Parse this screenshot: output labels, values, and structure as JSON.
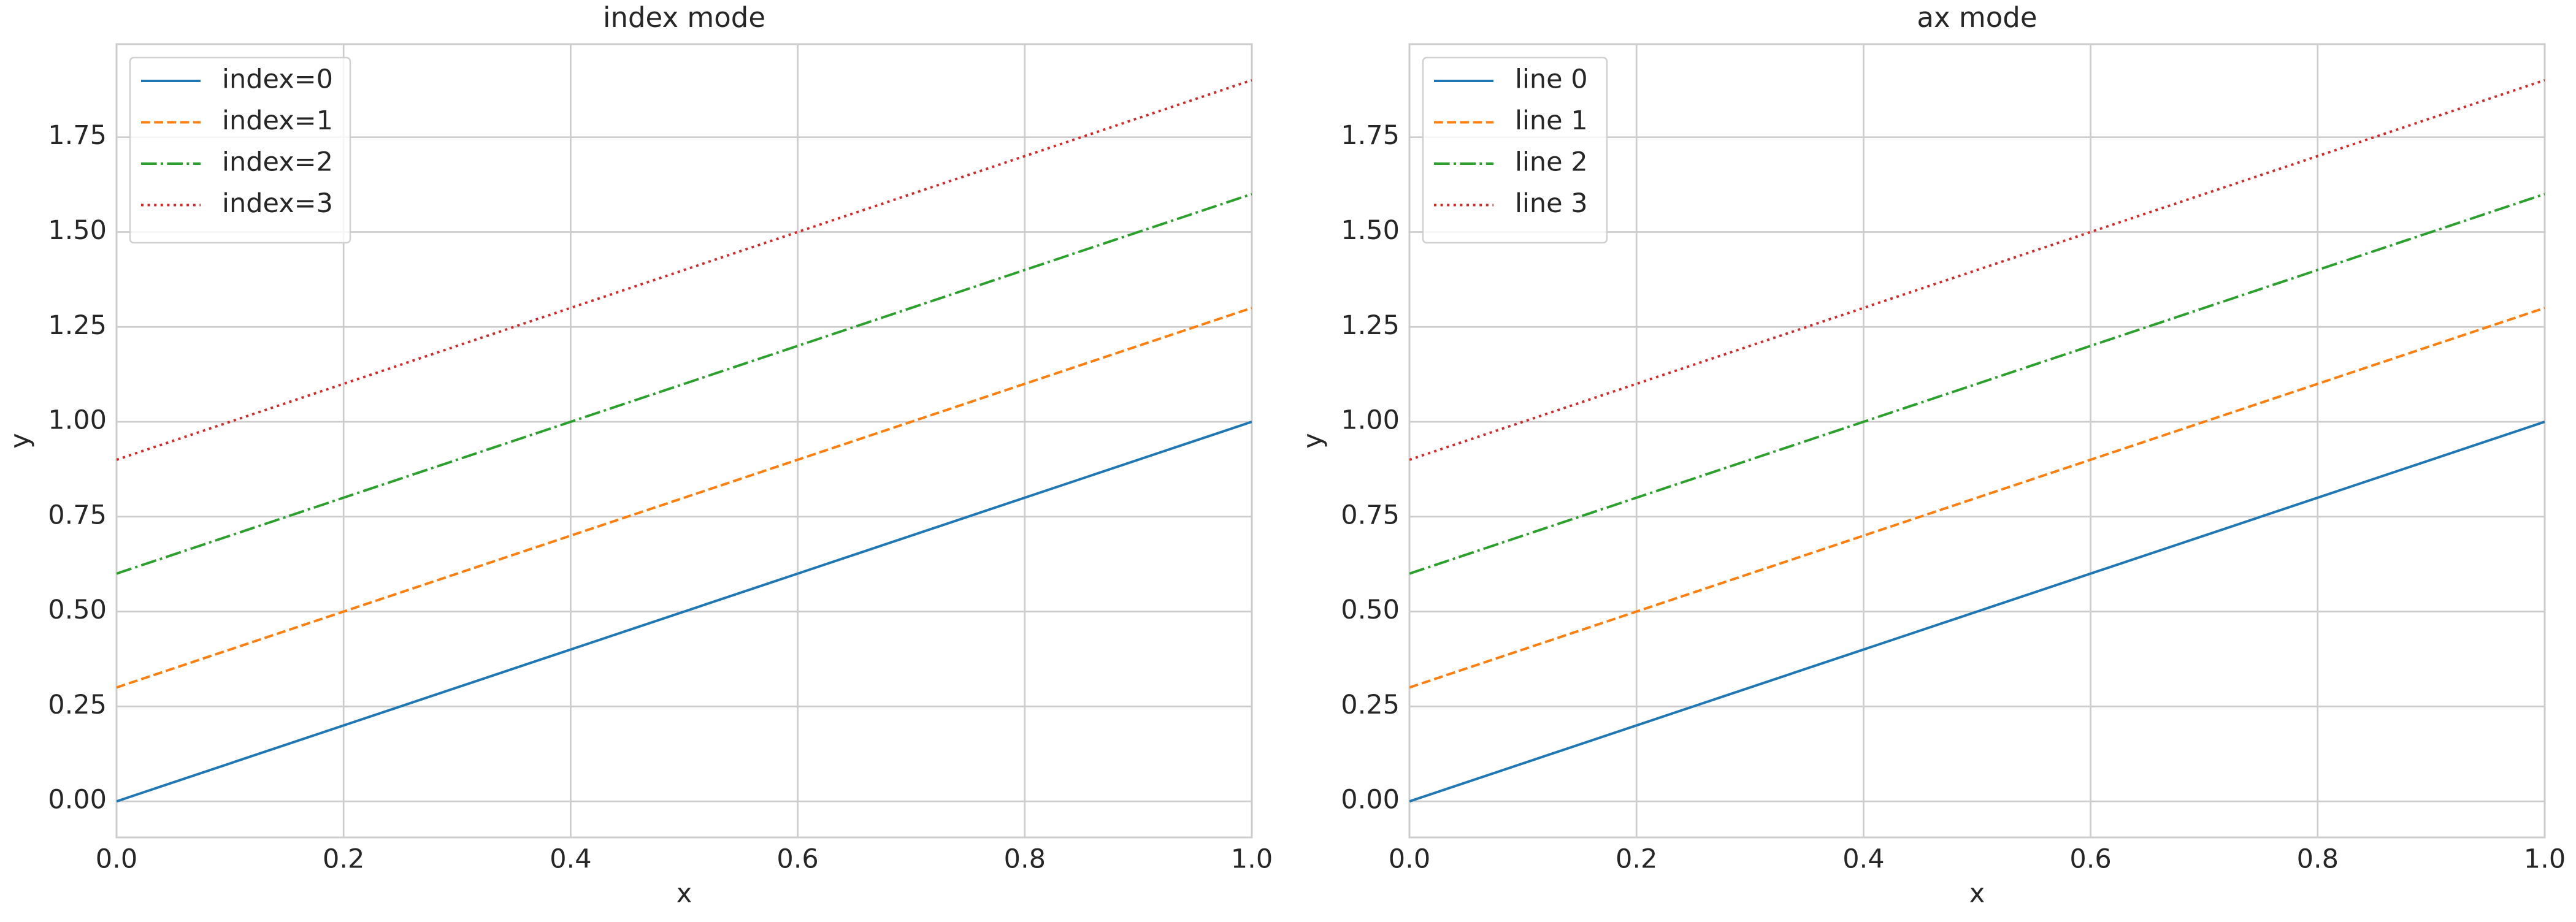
{
  "chart_data": [
    {
      "type": "line",
      "title": "index mode",
      "x_label": "x",
      "y_label": "y",
      "x": [
        0,
        1
      ],
      "series": [
        {
          "name": "index=0",
          "color": "#1f77b4",
          "linestyle": "solid",
          "values": [
            0,
            1
          ]
        },
        {
          "name": "index=1",
          "color": "#ff7f0e",
          "linestyle": "dashed",
          "values": [
            0.3,
            1.3
          ]
        },
        {
          "name": "index=2",
          "color": "#2ca02c",
          "linestyle": "dashdot",
          "values": [
            0.6,
            1.6
          ]
        },
        {
          "name": "index=3",
          "color": "#d62728",
          "linestyle": "dotted",
          "values": [
            0.9,
            1.9
          ]
        }
      ],
      "xlim": [
        0,
        1
      ],
      "ylim": [
        -0.095,
        1.995
      ],
      "xticks": [
        {
          "value": 0,
          "label": "0.0"
        },
        {
          "value": 0.2,
          "label": "0.2"
        },
        {
          "value": 0.4,
          "label": "0.4"
        },
        {
          "value": 0.6,
          "label": "0.6"
        },
        {
          "value": 0.8,
          "label": "0.8"
        },
        {
          "value": 1,
          "label": "1.0"
        }
      ],
      "yticks": [
        {
          "value": 0,
          "label": "0.00"
        },
        {
          "value": 0.25,
          "label": "0.25"
        },
        {
          "value": 0.5,
          "label": "0.50"
        },
        {
          "value": 0.75,
          "label": "0.75"
        },
        {
          "value": 1,
          "label": "1.00"
        },
        {
          "value": 1.25,
          "label": "1.25"
        },
        {
          "value": 1.5,
          "label": "1.50"
        },
        {
          "value": 1.75,
          "label": "1.75"
        }
      ],
      "grid": true,
      "legend": "upper left"
    },
    {
      "type": "line",
      "title": "ax mode",
      "x_label": "x",
      "y_label": "y",
      "x": [
        0,
        1
      ],
      "series": [
        {
          "name": "line 0",
          "color": "#1f77b4",
          "linestyle": "solid",
          "values": [
            0,
            1
          ]
        },
        {
          "name": "line 1",
          "color": "#ff7f0e",
          "linestyle": "dashed",
          "values": [
            0.3,
            1.3
          ]
        },
        {
          "name": "line 2",
          "color": "#2ca02c",
          "linestyle": "dashdot",
          "values": [
            0.6,
            1.6
          ]
        },
        {
          "name": "line 3",
          "color": "#d62728",
          "linestyle": "dotted",
          "values": [
            0.9,
            1.9
          ]
        }
      ],
      "xlim": [
        0,
        1
      ],
      "ylim": [
        -0.095,
        1.995
      ],
      "xticks": [
        {
          "value": 0,
          "label": "0.0"
        },
        {
          "value": 0.2,
          "label": "0.2"
        },
        {
          "value": 0.4,
          "label": "0.4"
        },
        {
          "value": 0.6,
          "label": "0.6"
        },
        {
          "value": 0.8,
          "label": "0.8"
        },
        {
          "value": 1,
          "label": "1.0"
        }
      ],
      "yticks": [
        {
          "value": 0,
          "label": "0.00"
        },
        {
          "value": 0.25,
          "label": "0.25"
        },
        {
          "value": 0.5,
          "label": "0.50"
        },
        {
          "value": 0.75,
          "label": "0.75"
        },
        {
          "value": 1,
          "label": "1.00"
        },
        {
          "value": 1.25,
          "label": "1.25"
        },
        {
          "value": 1.5,
          "label": "1.50"
        },
        {
          "value": 1.75,
          "label": "1.75"
        }
      ],
      "grid": true,
      "legend": "upper left"
    }
  ]
}
